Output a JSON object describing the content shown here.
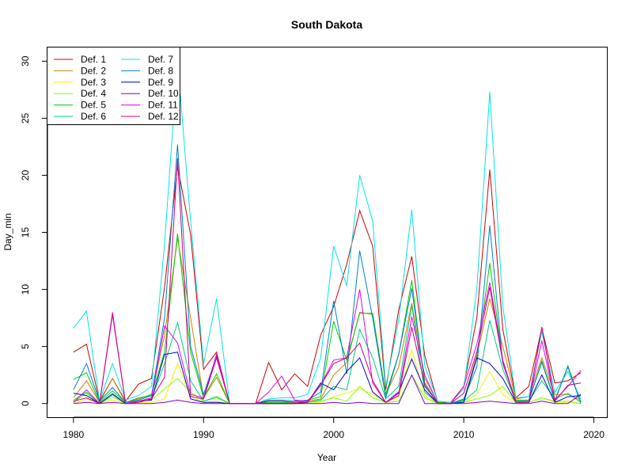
{
  "chart_data": {
    "type": "line",
    "title": "South Dakota",
    "xlabel": "Year",
    "ylabel": "Day_min",
    "xlim": [
      1978,
      2021
    ],
    "ylim": [
      -1.2,
      31.2
    ],
    "xticks": [
      1980,
      1990,
      2000,
      2010,
      2020
    ],
    "yticks": [
      0,
      5,
      10,
      15,
      20,
      25,
      30
    ],
    "grid": false,
    "legend_position": "top-left",
    "x": [
      1980,
      1981,
      1982,
      1983,
      1984,
      1985,
      1986,
      1987,
      1988,
      1989,
      1990,
      1991,
      1992,
      1993,
      1994,
      1995,
      1996,
      1997,
      1998,
      1999,
      2000,
      2001,
      2002,
      2003,
      2004,
      2005,
      2006,
      2007,
      2008,
      2009,
      2010,
      2011,
      2012,
      2013,
      2014,
      2015,
      2016,
      2017,
      2018,
      2019
    ],
    "series": [
      {
        "name": "Def. 1",
        "color": "#cc0000",
        "values": [
          4.5,
          5.2,
          0.2,
          2.2,
          0.2,
          1.7,
          2.2,
          10.2,
          20.8,
          14.8,
          3.0,
          4.5,
          0,
          0,
          0,
          3.6,
          1.2,
          2.6,
          1.5,
          6.0,
          8.5,
          12.2,
          16.9,
          13.8,
          1.2,
          8.2,
          12.9,
          4.2,
          0.1,
          0.1,
          1.5,
          7.5,
          20.5,
          6.5,
          0.5,
          1.5,
          6.6,
          1.8,
          2.0,
          2.7
        ]
      },
      {
        "name": "Def. 2",
        "color": "#cc8000",
        "values": [
          0.5,
          2.0,
          0.1,
          2.2,
          0.1,
          0.5,
          0.7,
          6.0,
          14.5,
          7.5,
          0.5,
          2.3,
          0,
          0,
          0,
          0.1,
          0.1,
          0.1,
          0.2,
          0.4,
          2.5,
          3.6,
          8.0,
          7.8,
          0.8,
          3.2,
          8.8,
          2.2,
          0.1,
          0.0,
          0.3,
          4.2,
          9.2,
          5.0,
          0.4,
          0.6,
          4.0,
          0.8,
          0.8,
          0.3
        ]
      },
      {
        "name": "Def. 3",
        "color": "#f2f200",
        "values": [
          0.0,
          0.4,
          0.0,
          0.3,
          0.0,
          0.1,
          0.1,
          0.4,
          3.5,
          0.7,
          0.1,
          0.2,
          0,
          0,
          0,
          0,
          0,
          0,
          0,
          0.1,
          0.6,
          0.9,
          1.3,
          0.8,
          0.1,
          0.6,
          4.7,
          0.7,
          0,
          0,
          0.1,
          0.8,
          2.8,
          0.8,
          0.0,
          0.1,
          0.5,
          0.1,
          0.1,
          0.0
        ]
      },
      {
        "name": "Def. 4",
        "color": "#80ff00",
        "values": [
          0.1,
          0.9,
          0.0,
          0.6,
          0.0,
          0.2,
          0.3,
          1.3,
          2.2,
          1.0,
          0.2,
          0.5,
          0,
          0,
          0,
          0,
          0,
          0,
          0.1,
          0.2,
          0.5,
          0.2,
          1.5,
          0.5,
          0.1,
          0.2,
          2.5,
          0.5,
          0,
          0,
          0.1,
          0.4,
          0.7,
          1.5,
          0.1,
          0.1,
          0.5,
          0.2,
          0.2,
          0.0
        ]
      },
      {
        "name": "Def. 5",
        "color": "#00cc00",
        "values": [
          2.1,
          2.7,
          0.1,
          1.1,
          0.1,
          0.4,
          0.8,
          4.5,
          14.9,
          4.5,
          0.5,
          2.6,
          0,
          0,
          0,
          0.1,
          0.1,
          0.1,
          0.3,
          0.6,
          7.2,
          3.8,
          7.9,
          7.9,
          0.8,
          4.3,
          10.8,
          1.5,
          0.1,
          0.0,
          0.3,
          4.0,
          12.3,
          3.6,
          0.3,
          0.3,
          3.6,
          0.2,
          3.3,
          0.1
        ]
      },
      {
        "name": "Def. 6",
        "color": "#00cc80",
        "values": [
          0.3,
          1.0,
          0.0,
          0.9,
          0.0,
          0.2,
          0.4,
          3.5,
          7.1,
          2.0,
          0.2,
          0.6,
          0,
          0,
          0,
          0,
          0,
          0,
          0.1,
          0.3,
          1.5,
          1.2,
          6.5,
          4.0,
          0.4,
          1.5,
          8.6,
          1.0,
          0.0,
          0.0,
          0.2,
          1.2,
          7.3,
          3.0,
          0.2,
          0.2,
          2.0,
          0.4,
          0.9,
          0.1
        ]
      },
      {
        "name": "Def. 7",
        "color": "#00e5e5",
        "values": [
          6.6,
          8.1,
          0.2,
          3.5,
          0.3,
          0.7,
          1.5,
          14.0,
          30.0,
          16.0,
          3.5,
          9.2,
          0,
          0,
          0,
          0.4,
          0.5,
          0.5,
          0.8,
          4.0,
          13.8,
          10.3,
          20.0,
          16.0,
          1.5,
          7.3,
          17.0,
          3.3,
          0.2,
          0.1,
          1.3,
          10.0,
          27.3,
          8.5,
          0.5,
          0.6,
          6.3,
          1.0,
          2.8,
          0.4
        ]
      },
      {
        "name": "Def. 8",
        "color": "#0080cc",
        "values": [
          1.2,
          3.5,
          0.2,
          1.4,
          0.1,
          0.3,
          0.7,
          7.5,
          22.7,
          5.0,
          0.8,
          4.2,
          0,
          0,
          0,
          0.3,
          0.3,
          0.2,
          0.3,
          1.0,
          9.0,
          2.6,
          13.4,
          7.5,
          0.5,
          4.3,
          10.1,
          1.8,
          0.0,
          0.0,
          0.4,
          3.2,
          15.6,
          3.5,
          0.2,
          0.2,
          3.7,
          0.3,
          3.2,
          0.0
        ]
      },
      {
        "name": "Def. 9",
        "color": "#0000cc",
        "values": [
          0.9,
          0.7,
          0.0,
          0.8,
          0.0,
          0.2,
          0.3,
          4.3,
          4.5,
          0.4,
          0.1,
          0.1,
          0,
          0,
          0,
          0,
          0,
          0,
          0.1,
          1.8,
          1.2,
          2.8,
          4.0,
          1.0,
          0.1,
          1.0,
          3.9,
          1.2,
          0,
          0,
          0.1,
          4.0,
          3.5,
          2.2,
          0.1,
          0.1,
          2.5,
          0.1,
          0.6,
          0.7
        ]
      },
      {
        "name": "Def. 10",
        "color": "#8000cc",
        "values": [
          0.0,
          0.1,
          0.0,
          0.1,
          0.0,
          0.0,
          0.0,
          0.1,
          0.3,
          0.1,
          0.0,
          0.0,
          0,
          0,
          0,
          0,
          0,
          0,
          0,
          0.0,
          0.1,
          0.0,
          0.1,
          0.0,
          0.0,
          0.0,
          2.5,
          0.0,
          0,
          0,
          0.0,
          0.1,
          0.2,
          0.1,
          0.0,
          0.0,
          0.2,
          0.0,
          0.0,
          0.8
        ]
      },
      {
        "name": "Def. 11",
        "color": "#e500e5",
        "values": [
          0.1,
          1.2,
          0.0,
          8.0,
          0.0,
          0.2,
          0.5,
          6.8,
          5.3,
          0.8,
          0.5,
          4.3,
          0,
          0,
          0,
          1.0,
          2.4,
          0.3,
          0.2,
          1.6,
          3.8,
          4.0,
          10.0,
          1.8,
          0.1,
          0.9,
          7.6,
          2.5,
          0.0,
          0.0,
          1.5,
          5.2,
          10.6,
          3.8,
          0.1,
          0.1,
          5.5,
          0.3,
          1.5,
          2.9
        ]
      },
      {
        "name": "Def. 12",
        "color": "#cc0080",
        "values": [
          0.2,
          0.5,
          0.0,
          7.8,
          0.0,
          0.1,
          0.4,
          2.3,
          21.5,
          0.6,
          0.4,
          4.0,
          0,
          0,
          0,
          0.2,
          0.2,
          0.1,
          0.1,
          1.6,
          3.5,
          4.0,
          5.3,
          2.0,
          0.1,
          0.7,
          6.7,
          1.6,
          0.0,
          0.0,
          0.9,
          4.5,
          10.2,
          3.6,
          0.1,
          0.1,
          6.7,
          0.2,
          1.6,
          1.8
        ]
      }
    ]
  }
}
